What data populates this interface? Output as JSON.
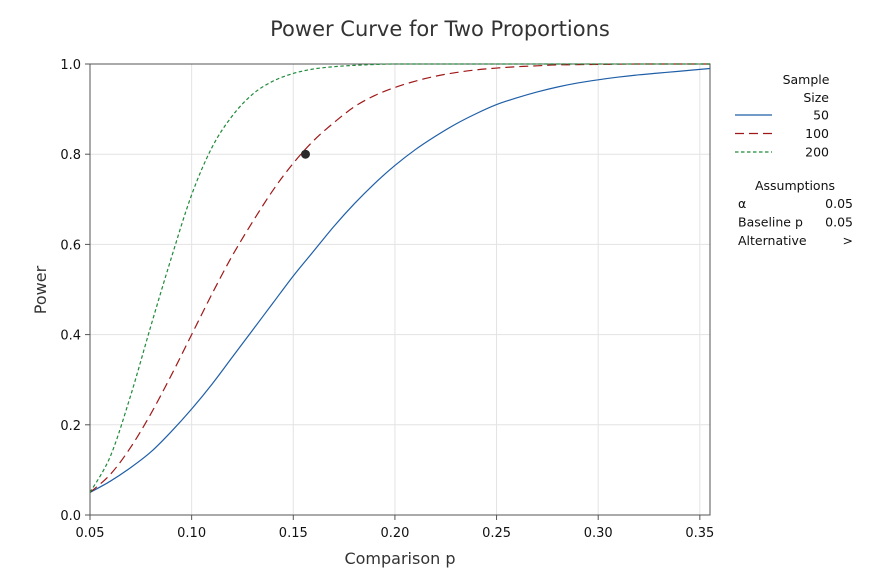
{
  "chart_data": {
    "type": "line",
    "title": "Power Curve for Two Proportions",
    "xlabel": "Comparison p",
    "ylabel": "Power",
    "xlim": [
      0.05,
      0.355
    ],
    "ylim": [
      0.0,
      1.0
    ],
    "x_ticks": [
      "0.05",
      "0.10",
      "0.15",
      "0.20",
      "0.25",
      "0.30",
      "0.35"
    ],
    "y_ticks": [
      "0.0",
      "0.2",
      "0.4",
      "0.6",
      "0.8",
      "1.0"
    ],
    "grid": true,
    "legend_placement": "right",
    "legend_title": [
      "Sample",
      "Size"
    ],
    "series": [
      {
        "name": "50",
        "color": "#1f5fa8",
        "dash": "solid",
        "x": [
          0.05,
          0.06,
          0.07,
          0.08,
          0.09,
          0.1,
          0.11,
          0.12,
          0.13,
          0.14,
          0.15,
          0.16,
          0.17,
          0.18,
          0.19,
          0.2,
          0.21,
          0.22,
          0.23,
          0.24,
          0.25,
          0.26,
          0.27,
          0.28,
          0.29,
          0.3,
          0.31,
          0.32,
          0.33,
          0.34,
          0.355
        ],
        "y": [
          0.05,
          0.075,
          0.105,
          0.14,
          0.185,
          0.235,
          0.29,
          0.35,
          0.41,
          0.47,
          0.53,
          0.585,
          0.64,
          0.69,
          0.735,
          0.775,
          0.81,
          0.84,
          0.867,
          0.89,
          0.91,
          0.925,
          0.938,
          0.949,
          0.958,
          0.965,
          0.971,
          0.976,
          0.98,
          0.984,
          0.99
        ]
      },
      {
        "name": "100",
        "color": "#a01818",
        "dash": "long-dash",
        "x": [
          0.05,
          0.06,
          0.07,
          0.08,
          0.09,
          0.1,
          0.11,
          0.12,
          0.13,
          0.14,
          0.15,
          0.16,
          0.17,
          0.18,
          0.19,
          0.2,
          0.21,
          0.22,
          0.23,
          0.24,
          0.25,
          0.26,
          0.27,
          0.28,
          0.3,
          0.32,
          0.355
        ],
        "y": [
          0.05,
          0.09,
          0.15,
          0.225,
          0.31,
          0.4,
          0.49,
          0.575,
          0.65,
          0.72,
          0.78,
          0.83,
          0.87,
          0.905,
          0.93,
          0.948,
          0.962,
          0.973,
          0.981,
          0.987,
          0.991,
          0.994,
          0.996,
          0.998,
          0.999,
          1.0,
          1.0
        ]
      },
      {
        "name": "200",
        "color": "#1e8a3a",
        "dash": "short-dash",
        "x": [
          0.05,
          0.06,
          0.07,
          0.08,
          0.09,
          0.1,
          0.11,
          0.12,
          0.13,
          0.14,
          0.15,
          0.16,
          0.17,
          0.18,
          0.19,
          0.2,
          0.22,
          0.25,
          0.3,
          0.355
        ],
        "y": [
          0.05,
          0.13,
          0.265,
          0.42,
          0.57,
          0.71,
          0.815,
          0.885,
          0.933,
          0.962,
          0.979,
          0.989,
          0.994,
          0.997,
          0.999,
          1.0,
          1.0,
          1.0,
          1.0,
          1.0
        ]
      }
    ],
    "marker": {
      "x": 0.156,
      "y": 0.8
    },
    "assumptions": {
      "title": "Assumptions",
      "rows": [
        {
          "label": "α",
          "value": "0.05"
        },
        {
          "label": "Baseline p",
          "value": "0.05"
        },
        {
          "label": "Alternative",
          "value": ">"
        }
      ]
    }
  }
}
